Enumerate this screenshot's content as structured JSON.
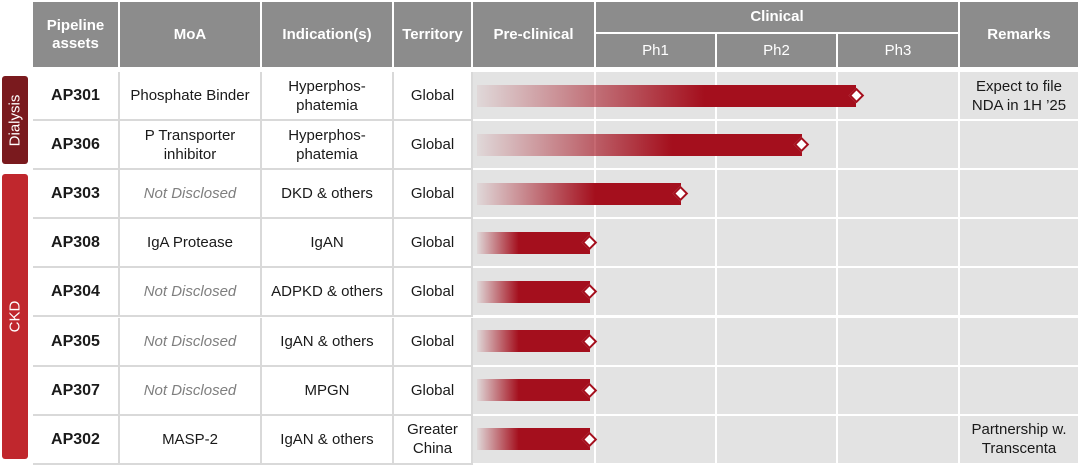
{
  "chart_data": {
    "type": "table",
    "columns": [
      "Pipeline assets",
      "MoA",
      "Indication(s)",
      "Territory",
      "Pre-clinical",
      "Clinical",
      "Remarks"
    ],
    "clinical_phases": [
      "Ph1",
      "Ph2",
      "Ph3"
    ],
    "groups": [
      {
        "label": "Dialysis",
        "rows": [
          0,
          1
        ]
      },
      {
        "label": "CKD",
        "rows": [
          2,
          3,
          4,
          5,
          6,
          7
        ]
      }
    ],
    "rows": [
      {
        "asset": "AP301",
        "moa": "Phosphate Binder",
        "moa_disclosed": true,
        "indication": "Hyperphos-\nphatemia",
        "territory": "Global",
        "progress": 3.15,
        "remarks": "Expect to file\nNDA in 1H ’25"
      },
      {
        "asset": "AP306",
        "moa": "P Transporter\ninhibitor",
        "moa_disclosed": true,
        "indication": "Hyperphos-\nphatemia",
        "territory": "Global",
        "progress": 2.7,
        "remarks": ""
      },
      {
        "asset": "AP303",
        "moa": "Not Disclosed",
        "moa_disclosed": false,
        "indication": "DKD & others",
        "territory": "Global",
        "progress": 1.7,
        "remarks": ""
      },
      {
        "asset": "AP308",
        "moa": "IgA Protease",
        "moa_disclosed": true,
        "indication": "IgAN",
        "territory": "Global",
        "progress": 0.95,
        "remarks": ""
      },
      {
        "asset": "AP304",
        "moa": "Not Disclosed",
        "moa_disclosed": false,
        "indication": "ADPKD & others",
        "territory": "Global",
        "progress": 0.95,
        "remarks": ""
      },
      {
        "asset": "AP305",
        "moa": "Not Disclosed",
        "moa_disclosed": false,
        "indication": "IgAN & others",
        "territory": "Global",
        "progress": 0.95,
        "remarks": ""
      },
      {
        "asset": "AP307",
        "moa": "Not Disclosed",
        "moa_disclosed": false,
        "indication": "MPGN",
        "territory": "Global",
        "progress": 0.95,
        "remarks": ""
      },
      {
        "asset": "AP302",
        "moa": "MASP-2",
        "moa_disclosed": true,
        "indication": "IgAN & others",
        "territory": "Greater\nChina",
        "progress": 0.95,
        "remarks": "Partnership w.\nTranscenta"
      }
    ],
    "colors": {
      "header": "#8c8c8c",
      "dialysis": "#7a1a1e",
      "ckd": "#c0272d",
      "bar": "#a40f1d",
      "phase_bg": "#e3e3e3"
    }
  }
}
